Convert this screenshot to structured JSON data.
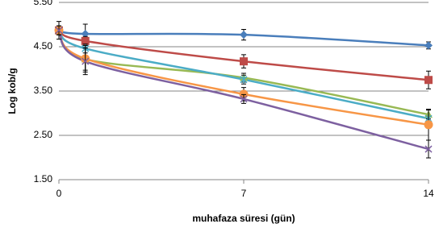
{
  "chart_data": {
    "type": "line",
    "x_label": "muhafaza süresi (gün)",
    "y_label": "Log kob/g",
    "x": [
      0,
      1,
      7,
      14
    ],
    "xlim": [
      0,
      14
    ],
    "xticks": [
      0,
      7,
      14
    ],
    "ylim": [
      1.5,
      5.5
    ],
    "yticks": [
      {
        "value": 1.5,
        "label": "1.50"
      },
      {
        "value": 2.5,
        "label": "2.50"
      },
      {
        "value": 3.5,
        "label": "3.50"
      },
      {
        "value": 4.5,
        "label": "4.50"
      },
      {
        "value": 5.5,
        "label": "5.50"
      }
    ],
    "grid": true,
    "series": [
      {
        "color": "#4a7ebb",
        "marker": "diamond",
        "values": [
          4.87,
          4.79,
          4.77,
          4.53
        ],
        "errors": [
          0.2,
          0.22,
          0.12,
          0.08
        ]
      },
      {
        "color": "#be4b48",
        "marker": "square",
        "values": [
          4.87,
          4.63,
          4.17,
          3.75
        ],
        "errors": [
          0.1,
          0.1,
          0.15,
          0.2
        ]
      },
      {
        "color": "#98b954",
        "marker": "triangle",
        "values": [
          4.87,
          4.22,
          3.8,
          2.97
        ],
        "errors": [
          0.1,
          0.25,
          0.1,
          0.1
        ]
      },
      {
        "color": "#4bacc6",
        "marker": "star",
        "values": [
          4.87,
          4.46,
          3.76,
          2.88
        ],
        "errors": [
          0.1,
          0.1,
          0.1,
          0.2
        ]
      },
      {
        "color": "#f79646",
        "marker": "circle",
        "values": [
          4.87,
          4.23,
          3.43,
          2.74
        ],
        "errors": [
          0.1,
          0.3,
          0.15,
          0.35
        ]
      },
      {
        "color": "#7d60a0",
        "marker": "x",
        "values": [
          4.87,
          4.17,
          3.32,
          2.19
        ],
        "errors": [
          0.1,
          0.3,
          0.1,
          0.2
        ]
      }
    ]
  }
}
